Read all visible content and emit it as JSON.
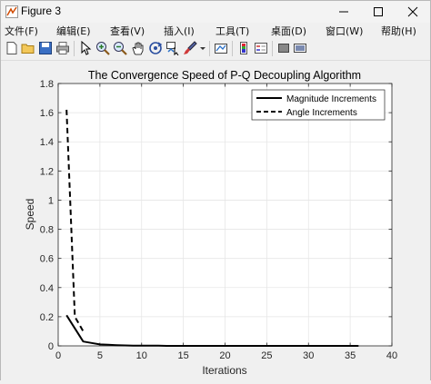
{
  "window": {
    "title": "Figure 3"
  },
  "menu": [
    {
      "label": "文件(F)"
    },
    {
      "label": "编辑(E)"
    },
    {
      "label": "查看(V)"
    },
    {
      "label": "插入(I)"
    },
    {
      "label": "工具(T)"
    },
    {
      "label": "桌面(D)"
    },
    {
      "label": "窗口(W)"
    },
    {
      "label": "帮助(H)"
    }
  ],
  "toolbar_icons": [
    "new-figure-icon",
    "open-file-icon",
    "save-icon",
    "print-icon",
    "pointer-icon",
    "zoom-in-icon",
    "zoom-out-icon",
    "pan-icon",
    "rotate-3d-icon",
    "data-cursor-icon",
    "brush-icon",
    "brush-dropdown-icon",
    "link-plot-icon",
    "colorbar-icon",
    "legend-icon",
    "hide-plot-tools-icon",
    "show-plot-tools-icon"
  ],
  "chart_data": {
    "type": "line",
    "title": "The Convergence Speed of P-Q Decoupling Algorithm",
    "xlabel": "Iterations",
    "ylabel": "Speed",
    "xlim": [
      0,
      40
    ],
    "ylim": [
      0,
      1.8
    ],
    "xticks": [
      "0",
      "5",
      "10",
      "15",
      "20",
      "25",
      "30",
      "35",
      "40"
    ],
    "yticks": [
      "0",
      "0.2",
      "0.4",
      "0.6",
      "0.8",
      "1",
      "1.2",
      "1.4",
      "1.6",
      "1.8"
    ],
    "grid": true,
    "legend_position": "top-right",
    "series": [
      {
        "name": "Magnitude Increments",
        "style": "solid",
        "color": "#000000",
        "x": [
          1,
          2,
          3,
          4,
          5,
          6,
          7,
          8,
          9,
          10,
          11,
          12,
          13,
          14,
          15,
          16,
          17,
          18,
          19,
          20,
          21,
          22,
          23,
          24,
          25,
          26,
          27,
          28,
          29,
          30,
          31,
          32,
          33,
          34,
          35,
          36
        ],
        "y": [
          0.21,
          0.12,
          0.03,
          0.02,
          0.01,
          0.008,
          0.005,
          0.003,
          0.002,
          0.001,
          0.001,
          0.001,
          0,
          0,
          0,
          0,
          0,
          0,
          0,
          0,
          0,
          0,
          0,
          0,
          0,
          0,
          0,
          0,
          0,
          0,
          0,
          0,
          0,
          0,
          0,
          0
        ]
      },
      {
        "name": "Angle Increments",
        "style": "dashed",
        "color": "#000000",
        "x": [
          1,
          2,
          3
        ],
        "y": [
          1.62,
          0.2,
          0.1
        ]
      }
    ]
  }
}
